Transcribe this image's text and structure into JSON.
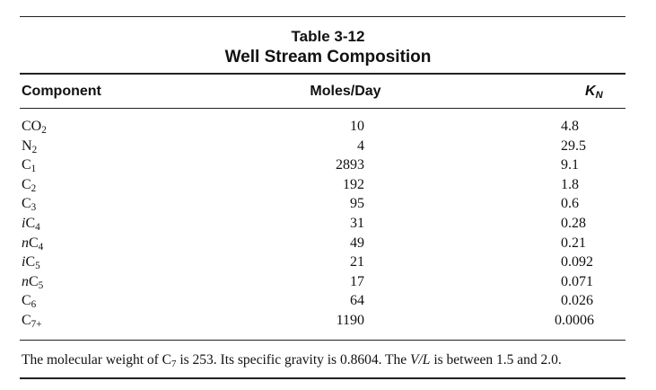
{
  "header": {
    "table_number": "Table 3-12",
    "title": "Well Stream Composition"
  },
  "table": {
    "columns": [
      "Component",
      "Moles/Day",
      {
        "base": "K",
        "sub": "N"
      }
    ],
    "rows": [
      [
        {
          "base": "CO",
          "sub": "2"
        },
        "10",
        "4.8"
      ],
      [
        {
          "base": "N",
          "sub": "2"
        },
        "4",
        "29.5"
      ],
      [
        {
          "base": "C",
          "sub": "1"
        },
        "2893",
        "9.1"
      ],
      [
        {
          "base": "C",
          "sub": "2"
        },
        "192",
        "1.8"
      ],
      [
        {
          "base": "C",
          "sub": "3"
        },
        "95",
        "0.6"
      ],
      [
        {
          "prefix": "i",
          "base": "C",
          "sub": "4"
        },
        "31",
        "0.28"
      ],
      [
        {
          "prefix": "n",
          "base": "C",
          "sub": "4"
        },
        "49",
        "0.21"
      ],
      [
        {
          "prefix": "i",
          "base": "C",
          "sub": "5"
        },
        "21",
        "0.092"
      ],
      [
        {
          "prefix": "n",
          "base": "C",
          "sub": "5"
        },
        "17",
        "0.071"
      ],
      [
        {
          "base": "C",
          "sub": "6"
        },
        "64",
        "0.026"
      ],
      [
        {
          "base": "C",
          "sub": "7+"
        },
        "1190",
        "0.0006"
      ]
    ]
  },
  "footnote": {
    "text1": "The molecular weight of C",
    "sub": "7",
    "text2": " is 253. Its specific gravity is 0.8604. The ",
    "italic": "V/L",
    "text3": " is between 1.5 and 2.0."
  }
}
